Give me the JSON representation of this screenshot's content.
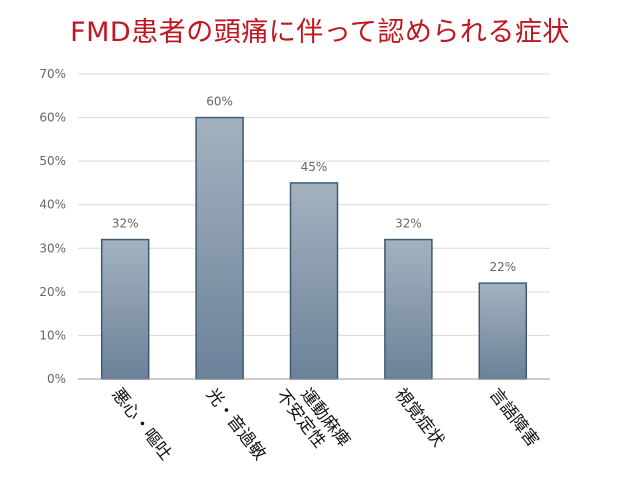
{
  "chart_data": {
    "type": "bar",
    "title": "FMD患者の頭痛に伴って認められる症状",
    "categories": [
      "悪心・嘔吐",
      "光・音過敏",
      "運動麻痺\n不安定性",
      "視覚症状",
      "言語障害"
    ],
    "values": [
      32,
      60,
      45,
      32,
      22
    ],
    "value_labels": [
      "32%",
      "60%",
      "45%",
      "32%",
      "22%"
    ],
    "yticks": [
      "0%",
      "10%",
      "20%",
      "30%",
      "40%",
      "50%",
      "60%",
      "70%"
    ],
    "ylim": [
      0,
      70
    ],
    "grid": true,
    "colors": {
      "bar_top": "#a4b2bf",
      "bar_bottom": "#6b829a",
      "bar_edge": "#3f5a72",
      "grid": "#d9d9d9",
      "axis": "#999999",
      "tick_text": "#666666",
      "category_text": "#111111",
      "title": "#c0161f"
    }
  }
}
